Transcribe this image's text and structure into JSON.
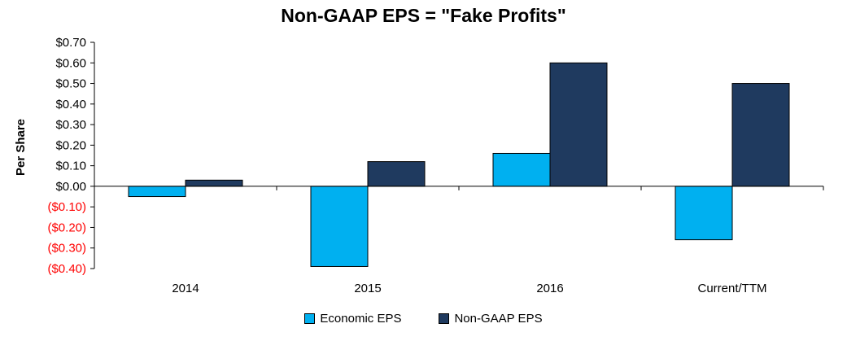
{
  "chart_data": {
    "type": "bar",
    "title": "Non-GAAP EPS = \"Fake Profits\"",
    "ylabel": "Per Share",
    "xlabel": "",
    "categories": [
      "2014",
      "2015",
      "2016",
      "Current/TTM"
    ],
    "series": [
      {
        "name": "Economic EPS",
        "values": [
          -0.05,
          -0.39,
          0.16,
          -0.26
        ],
        "color": "#00B0F0"
      },
      {
        "name": "Non-GAAP EPS",
        "values": [
          0.03,
          0.12,
          0.6,
          0.5
        ],
        "color": "#1F3A5F"
      }
    ],
    "ylim": [
      -0.4,
      0.7
    ],
    "yticks": [
      {
        "value": 0.7,
        "label": "$0.70"
      },
      {
        "value": 0.6,
        "label": "$0.60"
      },
      {
        "value": 0.5,
        "label": "$0.50"
      },
      {
        "value": 0.4,
        "label": "$0.40"
      },
      {
        "value": 0.3,
        "label": "$0.30"
      },
      {
        "value": 0.2,
        "label": "$0.20"
      },
      {
        "value": 0.1,
        "label": "$0.10"
      },
      {
        "value": 0.0,
        "label": "$0.00"
      },
      {
        "value": -0.1,
        "label": "($0.10)"
      },
      {
        "value": -0.2,
        "label": "($0.20)"
      },
      {
        "value": -0.3,
        "label": "($0.30)"
      },
      {
        "value": -0.4,
        "label": "($0.40)"
      }
    ],
    "negative_tick_color": "#FF0000",
    "grid": false,
    "legend_position": "bottom"
  }
}
